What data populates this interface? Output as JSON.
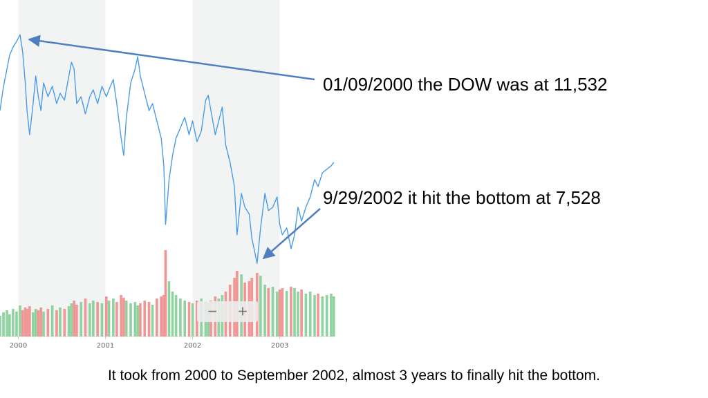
{
  "chart_data": {
    "type": "line",
    "x": [
      1999.79,
      1999.83,
      1999.87,
      1999.9,
      1999.94,
      1999.98,
      2000.02,
      2000.05,
      2000.08,
      2000.1,
      2000.13,
      2000.17,
      2000.2,
      2000.23,
      2000.26,
      2000.29,
      2000.34,
      2000.39,
      2000.44,
      2000.48,
      2000.53,
      2000.58,
      2000.61,
      2000.64,
      2000.67,
      2000.72,
      2000.77,
      2000.82,
      2000.86,
      2000.91,
      2000.96,
      2001.01,
      2001.04,
      2001.09,
      2001.13,
      2001.18,
      2001.21,
      2001.24,
      2001.29,
      2001.34,
      2001.37,
      2001.4,
      2001.45,
      2001.5,
      2001.54,
      2001.59,
      2001.64,
      2001.67,
      2001.69,
      2001.73,
      2001.77,
      2001.81,
      2001.86,
      2001.91,
      2001.96,
      2002.0,
      2002.05,
      2002.1,
      2002.15,
      2002.18,
      2002.21,
      2002.26,
      2002.3,
      2002.34,
      2002.38,
      2002.43,
      2002.48,
      2002.51,
      2002.56,
      2002.6,
      2002.65,
      2002.68,
      2002.74,
      2002.78,
      2002.83,
      2002.87,
      2002.92,
      2002.97,
      2003.0,
      2003.03,
      2003.08,
      2003.13,
      2003.17,
      2003.21,
      2003.25,
      2003.3,
      2003.35,
      2003.4,
      2003.44,
      2003.49,
      2003.54,
      2003.59,
      2003.62
    ],
    "values": [
      10206,
      10630,
      10932,
      11174,
      11319,
      11416,
      11532,
      11234,
      10690,
      10206,
      9782,
      10327,
      10811,
      10448,
      10206,
      10690,
      10448,
      10630,
      10327,
      10508,
      10387,
      10811,
      11053,
      10932,
      10327,
      10448,
      10145,
      10448,
      10569,
      10327,
      10630,
      10448,
      10569,
      10750,
      10327,
      9722,
      9419,
      10085,
      10690,
      10932,
      11150,
      10811,
      10508,
      10206,
      10327,
      10024,
      9722,
      9238,
      8209,
      8996,
      9419,
      9722,
      9903,
      10085,
      9782,
      10024,
      9661,
      9843,
      10387,
      10472,
      10206,
      9782,
      10024,
      10266,
      9601,
      9298,
      8875,
      8028,
      8754,
      8512,
      8391,
      7967,
      7528,
      8149,
      8754,
      8451,
      8512,
      8693,
      8209,
      8028,
      8149,
      7786,
      8028,
      8512,
      8270,
      8512,
      8693,
      8996,
      8875,
      9117,
      9177,
      9238,
      9298
    ],
    "color": "#4a9be8",
    "xlim": [
      1999.79,
      2003.63
    ],
    "xticks": [
      2000,
      2001,
      2002,
      2003
    ],
    "ylim": [
      7300,
      11900
    ],
    "volume": {
      "values": [
        30,
        35,
        38,
        32,
        40,
        36,
        45,
        38,
        42,
        40,
        44,
        35,
        40,
        38,
        42,
        36,
        40,
        45,
        38,
        42,
        40,
        44,
        48,
        52,
        46,
        50,
        55,
        48,
        52,
        50,
        48,
        58,
        52,
        55,
        50,
        60,
        56,
        52,
        48,
        50,
        45,
        48,
        52,
        50,
        46,
        55,
        58,
        60,
        125,
        80,
        65,
        60,
        55,
        52,
        50,
        48,
        52,
        55,
        50,
        48,
        52,
        58,
        55,
        60,
        65,
        75,
        85,
        95,
        90,
        78,
        80,
        85,
        92,
        88,
        75,
        70,
        72,
        65,
        68,
        70,
        66,
        72,
        70,
        65,
        68,
        62,
        65,
        60,
        62,
        58,
        60,
        62,
        58
      ],
      "lim": [
        0,
        130
      ],
      "up_color": "#8fd3a0",
      "down_color": "#f19595"
    },
    "band_color": "#f2f4f4",
    "annotations": [
      "01/09/2000 the DOW was at 11,532",
      "9/29/2002 it hit the bottom at 7,528"
    ],
    "zoom_out_label": "−",
    "zoom_in_label": "+",
    "caption": "It took from 2000 to September 2002, almost 3 years to finally hit the bottom."
  }
}
